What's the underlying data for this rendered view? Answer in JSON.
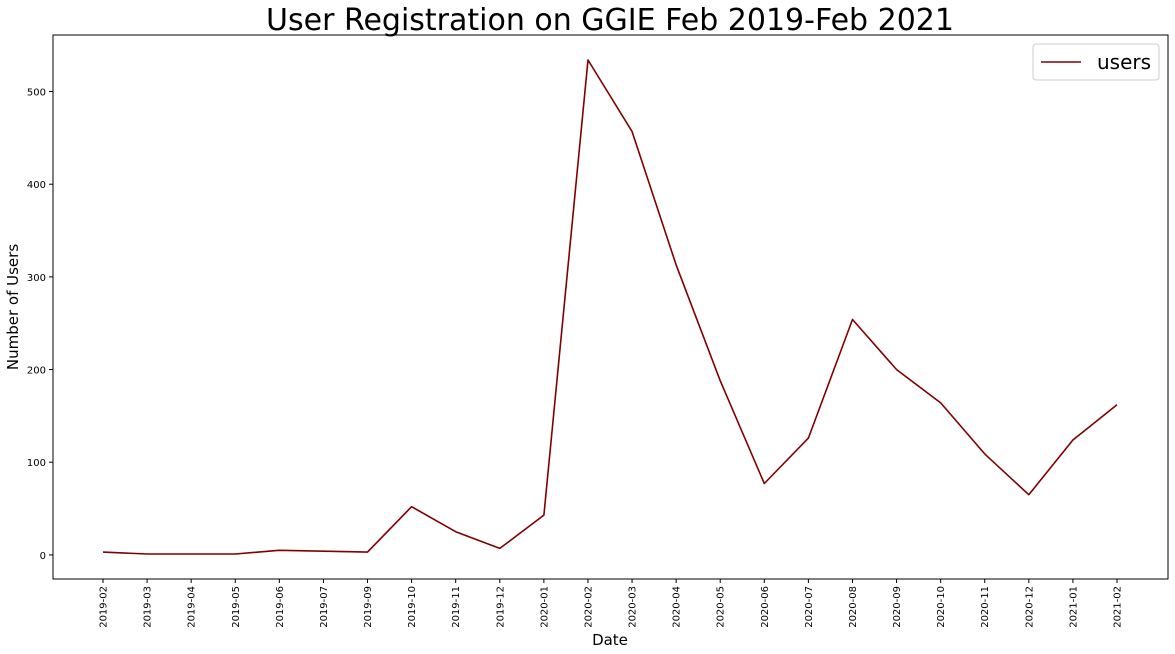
{
  "chart_data": {
    "type": "line",
    "title": "User Registration on GGIE Feb 2019-Feb 2021",
    "xlabel": "Date",
    "ylabel": "Number of Users",
    "x": [
      "2019-02",
      "2019-03",
      "2019-04",
      "2019-05",
      "2019-06",
      "2019-07",
      "2019-09",
      "2019-10",
      "2019-11",
      "2019-12",
      "2020-01",
      "2020-02",
      "2020-03",
      "2020-04",
      "2020-05",
      "2020-06",
      "2020-07",
      "2020-08",
      "2020-09",
      "2020-10",
      "2020-11",
      "2020-12",
      "2021-01",
      "2021-02"
    ],
    "series": [
      {
        "name": "users",
        "color": "#800000",
        "values": [
          3,
          1,
          1,
          1,
          5,
          4,
          3,
          52,
          25,
          7,
          43,
          534,
          457,
          313,
          188,
          77,
          126,
          254,
          200,
          164,
          109,
          65,
          124,
          162
        ]
      }
    ],
    "yticks": [
      0,
      100,
      200,
      300,
      400,
      500
    ],
    "ylim": [
      -26,
      561
    ],
    "grid": false,
    "legend_position": "top-right"
  }
}
